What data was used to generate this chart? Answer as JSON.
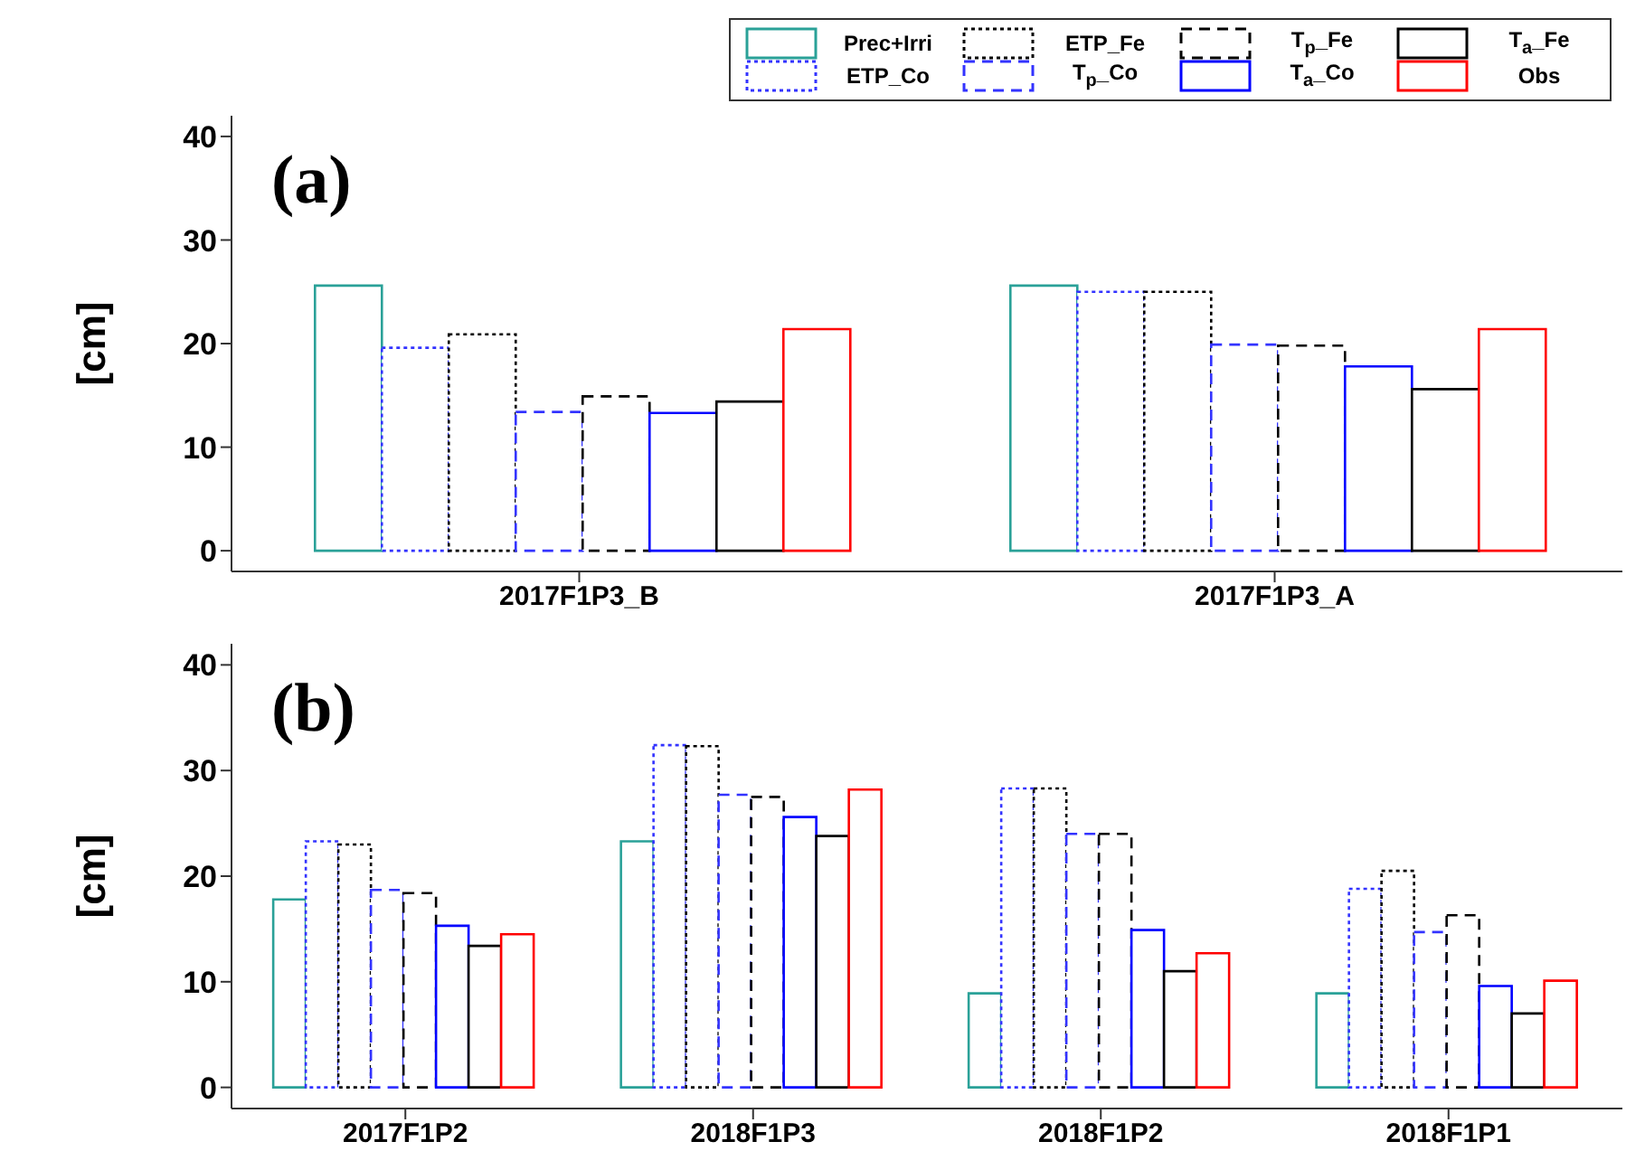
{
  "chart_data": [
    {
      "type": "bar",
      "title": "(a)",
      "ylabel": "[cm]",
      "categories": [
        "2017F1P3_B",
        "2017F1P3_A"
      ],
      "ylim": [
        -2,
        42
      ],
      "yticks": [
        0,
        10,
        20,
        30,
        40
      ],
      "legend": "top right",
      "series": [
        {
          "name": "Prec+Irri",
          "color": "#2aa198",
          "line_style": "solid",
          "values": [
            25.6,
            25.6
          ]
        },
        {
          "name": "ETP_Co",
          "color": "#3333ff",
          "line_style": "dotted",
          "values": [
            19.6,
            25.0
          ]
        },
        {
          "name": "ETP_Fe",
          "color": "#000000",
          "line_style": "dotted",
          "values": [
            20.9,
            25.0
          ]
        },
        {
          "name": "T$_{p}$_Co",
          "color": "#3333ff",
          "line_style": "dashed",
          "values": [
            13.4,
            19.9
          ]
        },
        {
          "name": "T$_{p}$_Fe",
          "color": "#000000",
          "line_style": "dashed",
          "values": [
            14.9,
            19.8
          ]
        },
        {
          "name": "T$_{a}$_Co",
          "color": "#0000ff",
          "line_style": "solid",
          "values": [
            13.3,
            17.8
          ]
        },
        {
          "name": "T$_{a}$_Fe",
          "color": "#000000",
          "line_style": "solid",
          "values": [
            14.4,
            15.6
          ]
        },
        {
          "name": "Obs",
          "color": "#ff0000",
          "line_style": "solid",
          "values": [
            21.4,
            21.4
          ]
        }
      ]
    },
    {
      "type": "bar",
      "title": "(b)",
      "ylabel": "[cm]",
      "categories": [
        "2017F1P2",
        "2018F1P3",
        "2018F1P2",
        "2018F1P1"
      ],
      "ylim": [
        -2,
        42
      ],
      "yticks": [
        0,
        10,
        20,
        30,
        40
      ],
      "legend": false,
      "series": [
        {
          "color": "#2aa198",
          "line_style": "solid",
          "values": [
            17.8,
            23.3,
            8.9,
            8.9
          ]
        },
        {
          "color": "#3333ff",
          "line_style": "dotted",
          "values": [
            23.3,
            32.4,
            28.3,
            18.8
          ]
        },
        {
          "color": "#000000",
          "line_style": "dotted",
          "values": [
            23.0,
            32.3,
            28.3,
            20.5
          ]
        },
        {
          "color": "#3333ff",
          "line_style": "dashed",
          "values": [
            18.7,
            27.7,
            24.0,
            14.7
          ]
        },
        {
          "color": "#000000",
          "line_style": "dashed",
          "values": [
            18.4,
            27.5,
            24.0,
            16.3
          ]
        },
        {
          "color": "#0000ff",
          "line_style": "solid",
          "values": [
            15.3,
            25.6,
            14.9,
            9.6
          ]
        },
        {
          "color": "#000000",
          "line_style": "solid",
          "values": [
            13.4,
            23.8,
            11.0,
            7.0
          ]
        },
        {
          "color": "#ff0000",
          "line_style": "solid",
          "values": [
            14.5,
            28.2,
            12.7,
            10.1
          ]
        }
      ]
    }
  ]
}
